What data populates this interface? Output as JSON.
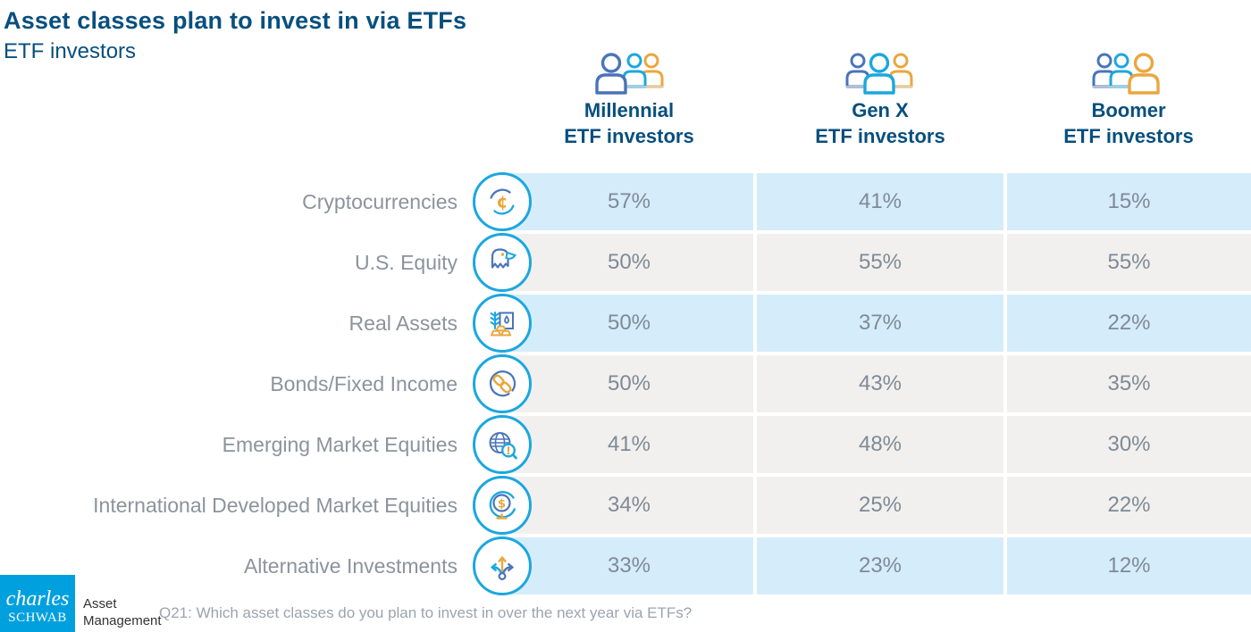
{
  "title": "Asset classes plan to invest in via ETFs",
  "subtitle": "ETF investors",
  "columns": [
    {
      "line1": "Millennial",
      "line2": "ETF investors",
      "icon": "millennial-investors-icon"
    },
    {
      "line1": "Gen X",
      "line2": "ETF investors",
      "icon": "genx-investors-icon"
    },
    {
      "line1": "Boomer",
      "line2": "ETF investors",
      "icon": "boomer-investors-icon"
    }
  ],
  "rows": [
    {
      "label": "Cryptocurrencies",
      "icon": "cryptocurrencies-icon",
      "values": [
        "57%",
        "41%",
        "15%"
      ],
      "band": "blue"
    },
    {
      "label": "U.S. Equity",
      "icon": "us-equity-eagle-icon",
      "values": [
        "50%",
        "55%",
        "55%"
      ],
      "band": "gray"
    },
    {
      "label": "Real Assets",
      "icon": "real-assets-icon",
      "values": [
        "50%",
        "37%",
        "22%"
      ],
      "band": "blue"
    },
    {
      "label": "Bonds/Fixed Income",
      "icon": "bonds-fixed-income-icon",
      "values": [
        "50%",
        "43%",
        "35%"
      ],
      "band": "gray"
    },
    {
      "label": "Emerging Market Equities",
      "icon": "emerging-markets-icon",
      "values": [
        "41%",
        "48%",
        "30%"
      ],
      "band": "gray"
    },
    {
      "label": "International Developed Market Equities",
      "icon": "international-developed-icon",
      "values": [
        "34%",
        "25%",
        "22%"
      ],
      "band": "gray"
    },
    {
      "label": "Alternative Investments",
      "icon": "alternative-investments-icon",
      "values": [
        "33%",
        "23%",
        "12%"
      ],
      "band": "blue"
    }
  ],
  "footer": {
    "logo_line1": "charles",
    "logo_line2": "SCHWAB",
    "brand_unit_line1": "Asset",
    "brand_unit_line2": "Management",
    "footnote": "Q21: Which asset classes do you plan to invest in over the next year via ETFs?"
  },
  "colors": {
    "navy": "#074f7e",
    "cyan": "#1ba7e0",
    "blue": "#4a74b9",
    "orange": "#eaa73e",
    "band_blue": "#d5ecfa",
    "band_gray": "#f1f0ee",
    "label_gray": "#8b939c",
    "value_gray": "#7f8a96",
    "footnote_gray": "#9aa4ae",
    "schwab_blue": "#00a0df"
  },
  "chart_data": {
    "type": "table",
    "title": "Asset classes plan to invest in via ETFs",
    "subtitle": "ETF investors",
    "categories": [
      "Cryptocurrencies",
      "U.S. Equity",
      "Real Assets",
      "Bonds/Fixed Income",
      "Emerging Market Equities",
      "International Developed Market Equities",
      "Alternative Investments"
    ],
    "series": [
      {
        "name": "Millennial ETF investors",
        "values": [
          57,
          50,
          50,
          50,
          41,
          34,
          33
        ]
      },
      {
        "name": "Gen X ETF investors",
        "values": [
          41,
          55,
          37,
          43,
          48,
          25,
          23
        ]
      },
      {
        "name": "Boomer ETF investors",
        "values": [
          15,
          55,
          22,
          35,
          30,
          22,
          12
        ]
      }
    ],
    "unit": "%",
    "legend_position": "top",
    "footnote": "Q21: Which asset classes do you plan to invest in over the next year via ETFs?"
  }
}
